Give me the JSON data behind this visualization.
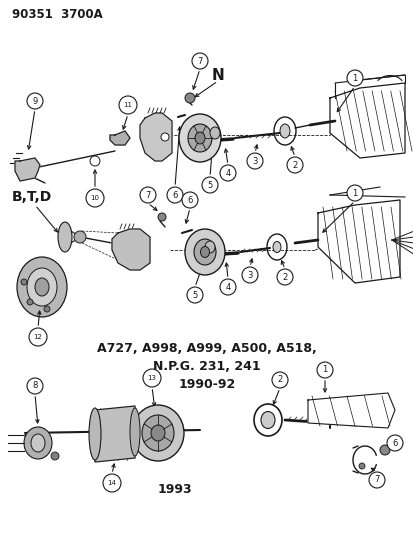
{
  "title_text": "90351  3700A",
  "background_color": "#ffffff",
  "line_color": "#1a1a1a",
  "text_color": "#1a1a1a",
  "fig_width": 4.14,
  "fig_height": 5.33,
  "dpi": 100,
  "label_N": "N",
  "label_BTD": "B,T,D",
  "middle_text_line1": "A727, A998, A999, A500, A518,",
  "middle_text_line2": "N.P.G. 231, 241",
  "middle_text_line3": "1990-92",
  "bottom_label": "1993"
}
